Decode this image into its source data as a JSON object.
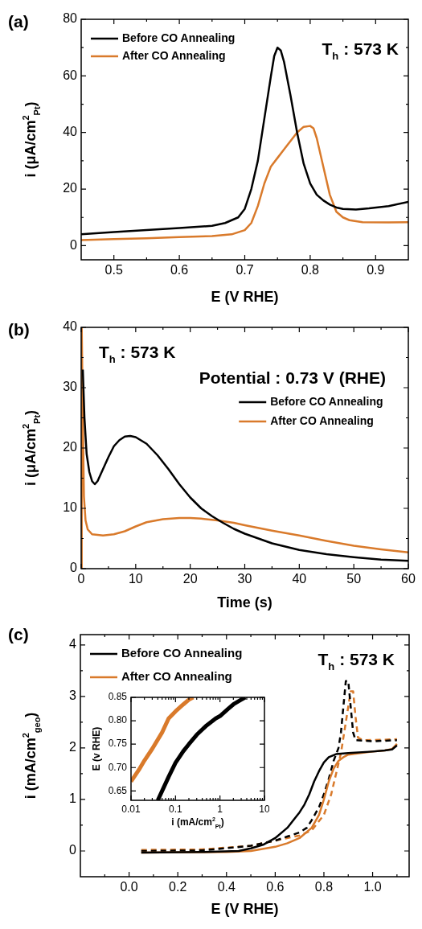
{
  "chart_data": [
    {
      "type": "line",
      "xlabel": "E (V RHE)",
      "ylabel": "i (μA/cm$^{2}$$_{Pt}$)",
      "annotations": [
        "(a)",
        "T$_{h}$ : 573 K"
      ],
      "legend": "top left",
      "xlim": [
        0.45,
        0.95
      ],
      "ylim": [
        -5,
        80
      ],
      "xticks": [
        0.5,
        {
          "value": 0.55,
          "label": null
        },
        0.6,
        {
          "value": 0.65,
          "label": null
        },
        0.7,
        {
          "value": 0.75,
          "label": null
        },
        0.8,
        {
          "value": 0.85,
          "label": null
        },
        0.9
      ],
      "yticks": [
        0,
        {
          "value": 10,
          "label": null
        },
        20,
        {
          "value": 30,
          "label": null
        },
        40,
        {
          "value": 50,
          "label": null
        },
        60,
        {
          "value": 70,
          "label": null
        },
        80
      ],
      "series": [
        {
          "name": "Before CO Annealing",
          "color": "#000000",
          "x": [
            0.45,
            0.5,
            0.55,
            0.6,
            0.65,
            0.67,
            0.69,
            0.7,
            0.71,
            0.72,
            0.73,
            0.74,
            0.745,
            0.75,
            0.755,
            0.76,
            0.77,
            0.78,
            0.79,
            0.8,
            0.81,
            0.82,
            0.83,
            0.84,
            0.85,
            0.87,
            0.89,
            0.92,
            0.95
          ],
          "values": [
            4,
            4.8,
            5.5,
            6.2,
            7,
            8,
            10,
            13,
            20,
            30,
            45,
            60,
            67,
            70,
            69,
            65,
            53,
            40,
            29,
            22,
            18,
            16,
            14.5,
            13.5,
            13,
            12.8,
            13.2,
            14,
            15.5
          ]
        },
        {
          "name": "After CO Annealing",
          "color": "#d97a2b",
          "x": [
            0.45,
            0.5,
            0.55,
            0.6,
            0.65,
            0.68,
            0.7,
            0.71,
            0.72,
            0.73,
            0.74,
            0.75,
            0.76,
            0.77,
            0.78,
            0.79,
            0.8,
            0.805,
            0.81,
            0.82,
            0.83,
            0.84,
            0.85,
            0.86,
            0.88,
            0.92,
            0.95
          ],
          "values": [
            2,
            2.3,
            2.6,
            3,
            3.4,
            4,
            5.5,
            8,
            14,
            22,
            28,
            31,
            34,
            37,
            40,
            42,
            42.3,
            41.5,
            38,
            28,
            18,
            12,
            10,
            9,
            8.3,
            8.2,
            8.3
          ]
        }
      ]
    },
    {
      "type": "line",
      "xlabel": "Time (s)",
      "ylabel": "i (μA/cm$^{2}$$_{Pt}$)",
      "annotations": [
        "(b)",
        "T$_{h}$ : 573 K",
        "Potential : 0.73 V (RHE)"
      ],
      "legend": "top right",
      "xlim": [
        0,
        60
      ],
      "ylim": [
        0,
        40
      ],
      "xticks": [
        0,
        {
          "value": 5,
          "label": null
        },
        10,
        {
          "value": 15,
          "label": null
        },
        20,
        {
          "value": 25,
          "label": null
        },
        30,
        {
          "value": 35,
          "label": null
        },
        40,
        {
          "value": 45,
          "label": null
        },
        50,
        {
          "value": 55,
          "label": null
        },
        60
      ],
      "yticks": [
        0,
        {
          "value": 5,
          "label": null
        },
        10,
        {
          "value": 15,
          "label": null
        },
        20,
        {
          "value": 25,
          "label": null
        },
        30,
        {
          "value": 35,
          "label": null
        },
        40
      ],
      "series": [
        {
          "name": "Before CO Annealing",
          "color": "#000000",
          "x": [
            0.3,
            0.6,
            1,
            1.5,
            2,
            2.5,
            3,
            4,
            5,
            6,
            7,
            8,
            9,
            10,
            12,
            14,
            16,
            18,
            20,
            22,
            24,
            26,
            28,
            30,
            35,
            40,
            45,
            50,
            55,
            60
          ],
          "values": [
            33,
            25,
            19,
            16,
            14.5,
            14,
            14.5,
            16.5,
            18.5,
            20.3,
            21.3,
            21.9,
            22,
            21.8,
            20.7,
            18.8,
            16.5,
            14,
            11.8,
            10,
            8.7,
            7.6,
            6.6,
            5.8,
            4.2,
            3.1,
            2.4,
            1.9,
            1.5,
            1.3
          ]
        },
        {
          "name": "After CO Annealing",
          "color": "#d97a2b",
          "x": [
            0,
            0.1,
            0.3,
            0.5,
            0.8,
            1.2,
            2,
            4,
            6,
            8,
            10,
            12,
            15,
            18,
            20,
            22,
            25,
            28,
            30,
            35,
            40,
            45,
            50,
            55,
            60
          ],
          "values": [
            0,
            40,
            25,
            12,
            8,
            6.5,
            5.7,
            5.5,
            5.7,
            6.2,
            7,
            7.7,
            8.2,
            8.4,
            8.4,
            8.3,
            8,
            7.6,
            7.2,
            6.3,
            5.5,
            4.6,
            3.8,
            3.2,
            2.7
          ]
        }
      ]
    },
    {
      "type": "line",
      "xlabel": "E (V RHE)",
      "ylabel": "i (mA/cm$^{2}$$_{geo}$)",
      "annotations": [
        "(c)",
        "T$_{h}$ : 573 K"
      ],
      "legend": "top left",
      "xlim": [
        -0.2,
        1.15
      ],
      "ylim": [
        -0.5,
        4.2
      ],
      "xticks": [
        {
          "value": -0.1,
          "label": null
        },
        {
          "value": 0,
          "label": "0.0"
        },
        {
          "value": 0.1,
          "label": null
        },
        0.2,
        {
          "value": 0.3,
          "label": null
        },
        0.4,
        {
          "value": 0.5,
          "label": null
        },
        0.6,
        {
          "value": 0.7,
          "label": null
        },
        0.8,
        {
          "value": 0.9,
          "label": null
        },
        {
          "value": 1,
          "label": "1.0"
        },
        {
          "value": 1.1,
          "label": null
        }
      ],
      "yticks": [
        0,
        {
          "value": 0.5,
          "label": null
        },
        1,
        {
          "value": 1.5,
          "label": null
        },
        2,
        {
          "value": 2.5,
          "label": null
        },
        3,
        {
          "value": 3.5,
          "label": null
        },
        4
      ],
      "series": [
        {
          "name": "Before CO Annealing",
          "color": "#000000",
          "x": [
            0.05,
            0.3,
            0.45,
            0.5,
            0.55,
            0.6,
            0.65,
            0.7,
            0.72,
            0.74,
            0.76,
            0.78,
            0.8,
            0.82,
            0.85,
            0.9,
            1.0,
            1.05,
            1.08,
            1.1
          ],
          "values": [
            -0.03,
            -0.02,
            0,
            0.05,
            0.12,
            0.25,
            0.45,
            0.75,
            0.9,
            1.1,
            1.35,
            1.55,
            1.72,
            1.82,
            1.88,
            1.9,
            1.93,
            1.95,
            1.97,
            2.05
          ]
        },
        {
          "name": "After CO Annealing",
          "color": "#d97a2b",
          "x": [
            0.05,
            0.4,
            0.5,
            0.6,
            0.65,
            0.7,
            0.75,
            0.78,
            0.8,
            0.82,
            0.84,
            0.86,
            0.88,
            0.9,
            1.0,
            1.05,
            1.08,
            1.1
          ],
          "values": [
            -0.03,
            -0.02,
            0,
            0.08,
            0.15,
            0.25,
            0.45,
            0.7,
            1.0,
            1.35,
            1.6,
            1.75,
            1.82,
            1.87,
            1.93,
            1.95,
            1.98,
            2.08
          ]
        },
        {
          "color": "#000000",
          "line_style": "dashed",
          "x": [
            0.05,
            0.3,
            0.5,
            0.6,
            0.65,
            0.7,
            0.73,
            0.75,
            0.78,
            0.8,
            0.82,
            0.84,
            0.86,
            0.87,
            0.88,
            0.89,
            0.9,
            0.91,
            0.92,
            0.93,
            1.0,
            1.1
          ],
          "values": [
            0,
            0.01,
            0.1,
            0.2,
            0.28,
            0.36,
            0.45,
            0.6,
            0.85,
            1.1,
            1.4,
            1.75,
            2.0,
            2.3,
            2.8,
            3.3,
            3.3,
            2.8,
            2.3,
            2.15,
            2.13,
            2.15
          ]
        },
        {
          "color": "#d97a2b",
          "line_style": "dashed",
          "x": [
            0.05,
            0.3,
            0.5,
            0.6,
            0.7,
            0.75,
            0.8,
            0.83,
            0.85,
            0.87,
            0.88,
            0.9,
            0.91,
            0.92,
            0.93,
            0.94,
            0.96,
            1.05,
            1.1
          ],
          "values": [
            0.02,
            0.03,
            0.1,
            0.2,
            0.3,
            0.4,
            0.7,
            1.1,
            1.5,
            1.9,
            2.2,
            2.8,
            3.1,
            3.1,
            2.6,
            2.2,
            2.15,
            2.16,
            2.17
          ]
        }
      ]
    },
    {
      "type": "line",
      "xlabel": "i (mA/cm$^{2}$$_{Pt}$)",
      "ylabel": "E (v RHE)",
      "log": "x",
      "xlim": [
        0.01,
        10
      ],
      "ylim": [
        0.63,
        0.85
      ],
      "xticks": [
        0.01,
        {
          "value": 0.02,
          "label": null
        },
        {
          "value": 0.03,
          "label": null
        },
        {
          "value": 0.04,
          "label": null
        },
        {
          "value": 0.05,
          "label": null
        },
        {
          "value": 0.06,
          "label": null
        },
        {
          "value": 0.07,
          "label": null
        },
        {
          "value": 0.08,
          "label": null
        },
        {
          "value": 0.09,
          "label": null
        },
        0.1,
        {
          "value": 0.2,
          "label": null
        },
        {
          "value": 0.3,
          "label": null
        },
        {
          "value": 0.4,
          "label": null
        },
        {
          "value": 0.5,
          "label": null
        },
        {
          "value": 0.6,
          "label": null
        },
        {
          "value": 0.7,
          "label": null
        },
        {
          "value": 0.8,
          "label": null
        },
        {
          "value": 0.9,
          "label": null
        },
        1,
        {
          "value": 2,
          "label": null
        },
        {
          "value": 3,
          "label": null
        },
        {
          "value": 4,
          "label": null
        },
        {
          "value": 5,
          "label": null
        },
        {
          "value": 6,
          "label": null
        },
        {
          "value": 7,
          "label": null
        },
        {
          "value": 8,
          "label": null
        },
        {
          "value": 9,
          "label": null
        },
        10
      ],
      "yticks": [
        0.65,
        {
          "value": 0.7,
          "label": "0.70"
        },
        0.75,
        {
          "value": 0.8,
          "label": "0.80"
        },
        0.85
      ],
      "series": [
        {
          "color": "#000000",
          "x": [
            0.04,
            0.05,
            0.07,
            0.1,
            0.15,
            0.2,
            0.3,
            0.5,
            0.8,
            1,
            1.5,
            2,
            3,
            3.7
          ],
          "values": [
            0.63,
            0.65,
            0.68,
            0.71,
            0.735,
            0.75,
            0.77,
            0.79,
            0.805,
            0.81,
            0.825,
            0.835,
            0.845,
            0.85
          ]
        },
        {
          "color": "#d97a2b",
          "x": [
            0.01,
            0.015,
            0.02,
            0.03,
            0.05,
            0.07,
            0.1,
            0.15,
            0.2,
            0.25
          ],
          "values": [
            0.67,
            0.695,
            0.715,
            0.74,
            0.775,
            0.805,
            0.82,
            0.835,
            0.845,
            0.85
          ]
        }
      ]
    }
  ]
}
